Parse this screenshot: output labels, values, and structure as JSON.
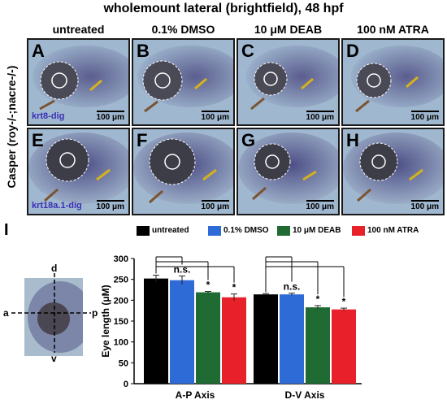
{
  "title": "wholemount lateral (brightfield), 48 hpf",
  "side_label": "Casper (roy-/-;nacre-/-)",
  "columns": [
    "untreated",
    "0.1% DMSO",
    "10 μM DEAB",
    "100 nM ATRA"
  ],
  "rows": [
    {
      "marker": "krt8-dig",
      "panels": [
        "A",
        "B",
        "C",
        "D"
      ]
    },
    {
      "marker": "krt18a.1-dig",
      "panels": [
        "E",
        "F",
        "G",
        "H"
      ]
    }
  ],
  "scale_bar": "100 μm",
  "panel_I_label": "I",
  "axis_diagram": {
    "top": "d",
    "bottom": "v",
    "left": "a",
    "right": "p"
  },
  "colors": {
    "untreated": "#000000",
    "dmso": "#2f6bd6",
    "deab": "#1f6b33",
    "atra": "#e8202a",
    "embryo_bg": "#9fb7cf"
  },
  "icons": [
    "eye-outline-icon",
    "brown-arrow-icon",
    "yellow-arrow-icon"
  ],
  "chart_data": {
    "type": "bar",
    "ylabel": "Eye length (μM)",
    "ylim": [
      0,
      300
    ],
    "yticks": [
      0,
      50,
      100,
      150,
      200,
      250,
      300
    ],
    "categories": [
      "A-P Axis",
      "D-V Axis"
    ],
    "series": [
      {
        "name": "untreated",
        "values": [
          252,
          214
        ],
        "errors": [
          8,
          2
        ],
        "color": "#000000"
      },
      {
        "name": "0.1% DMSO",
        "values": [
          248,
          214
        ],
        "errors": [
          10,
          3
        ],
        "color": "#2f6bd6"
      },
      {
        "name": "10 μM DEAB",
        "values": [
          219,
          183
        ],
        "errors": [
          2,
          4
        ],
        "color": "#1f6b33"
      },
      {
        "name": "100 nM ATRA",
        "values": [
          207,
          178
        ],
        "errors": [
          8,
          3
        ],
        "color": "#e8202a"
      }
    ],
    "annotations": [
      {
        "category": "A-P Axis",
        "series": "0.1% DMSO",
        "text": "n.s."
      },
      {
        "category": "A-P Axis",
        "series": "10 μM DEAB",
        "text": "*"
      },
      {
        "category": "A-P Axis",
        "series": "100 nM ATRA",
        "text": "*"
      },
      {
        "category": "D-V Axis",
        "series": "0.1% DMSO",
        "text": "n.s."
      },
      {
        "category": "D-V Axis",
        "series": "10 μM DEAB",
        "text": "*"
      },
      {
        "category": "D-V Axis",
        "series": "100 nM ATRA",
        "text": "*"
      }
    ],
    "legend_position": "top"
  }
}
